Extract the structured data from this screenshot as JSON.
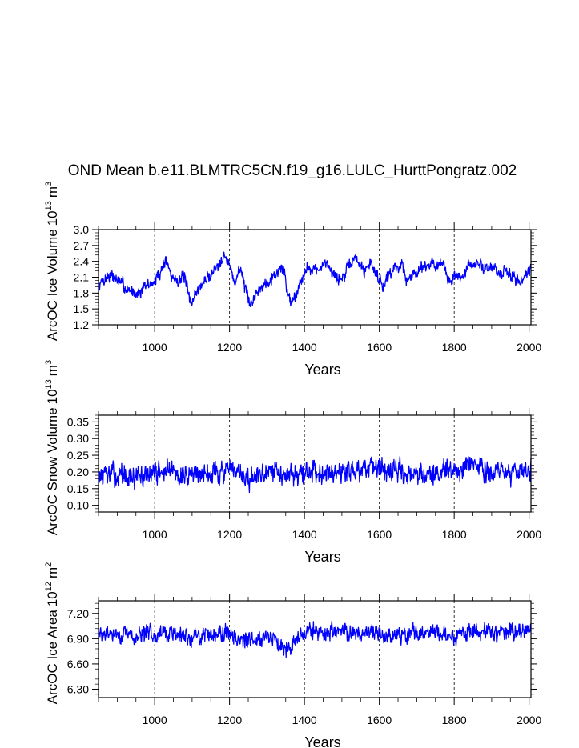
{
  "title": "OND Mean b.e11.BLMTRC5CN.f19_g16.LULC_HurttPongratz.002",
  "style": {
    "line_color": "#0000ff",
    "axis_color": "#000000",
    "gridline_color": "#000000"
  },
  "chart_data": [
    {
      "type": "line",
      "name": "ice-volume",
      "ylabel": "ArcOC Ice Volume",
      "ylabel_exponent_base": "10",
      "ylabel_exponent": "13",
      "ylabel_unit": "m",
      "ylabel_unit_exponent": "3",
      "xlabel": "Years",
      "xlim": [
        850,
        2005
      ],
      "ylim": [
        1.2,
        3.0
      ],
      "xticks": [
        1000,
        1200,
        1400,
        1600,
        1800,
        2000
      ],
      "xtick_labels": [
        "1000",
        "1200",
        "1400",
        "1600",
        "1800",
        "2000"
      ],
      "yticks": [
        1.2,
        1.5,
        1.8,
        2.1,
        2.4,
        2.7,
        3.0
      ],
      "ytick_labels": [
        "1.2",
        "1.5",
        "1.8",
        "2.1",
        "2.4",
        "2.7",
        "3.0"
      ],
      "vertical_gridlines": [
        1000,
        1200,
        1400,
        1600,
        1800
      ],
      "series": [
        {
          "name": "ice_volume",
          "start_year": 850,
          "end_year": 2005,
          "anchors": [
            [
              850,
              1.95
            ],
            [
              880,
              2.15
            ],
            [
              900,
              2.05
            ],
            [
              930,
              1.85
            ],
            [
              960,
              1.8
            ],
            [
              980,
              1.95
            ],
            [
              1000,
              2.0
            ],
            [
              1015,
              2.2
            ],
            [
              1030,
              2.45
            ],
            [
              1045,
              2.1
            ],
            [
              1060,
              2.05
            ],
            [
              1080,
              2.1
            ],
            [
              1095,
              1.6
            ],
            [
              1110,
              1.8
            ],
            [
              1130,
              2.0
            ],
            [
              1150,
              2.15
            ],
            [
              1170,
              2.35
            ],
            [
              1185,
              2.55
            ],
            [
              1200,
              2.3
            ],
            [
              1215,
              2.0
            ],
            [
              1230,
              2.3
            ],
            [
              1245,
              1.75
            ],
            [
              1255,
              1.55
            ],
            [
              1270,
              1.8
            ],
            [
              1290,
              1.95
            ],
            [
              1310,
              2.1
            ],
            [
              1330,
              2.2
            ],
            [
              1345,
              2.3
            ],
            [
              1355,
              1.75
            ],
            [
              1370,
              1.65
            ],
            [
              1385,
              1.95
            ],
            [
              1400,
              2.2
            ],
            [
              1420,
              2.3
            ],
            [
              1440,
              2.2
            ],
            [
              1460,
              2.4
            ],
            [
              1475,
              2.2
            ],
            [
              1490,
              2.05
            ],
            [
              1510,
              2.15
            ],
            [
              1525,
              2.4
            ],
            [
              1540,
              2.45
            ],
            [
              1560,
              2.2
            ],
            [
              1575,
              2.4
            ],
            [
              1590,
              2.2
            ],
            [
              1610,
              1.95
            ],
            [
              1625,
              2.15
            ],
            [
              1645,
              2.3
            ],
            [
              1660,
              2.35
            ],
            [
              1675,
              2.0
            ],
            [
              1690,
              2.15
            ],
            [
              1710,
              2.3
            ],
            [
              1730,
              2.35
            ],
            [
              1750,
              2.35
            ],
            [
              1770,
              2.3
            ],
            [
              1790,
              2.0
            ],
            [
              1805,
              2.15
            ],
            [
              1820,
              2.1
            ],
            [
              1840,
              2.3
            ],
            [
              1860,
              2.35
            ],
            [
              1880,
              2.3
            ],
            [
              1900,
              2.3
            ],
            [
              1920,
              2.15
            ],
            [
              1940,
              2.2
            ],
            [
              1960,
              2.1
            ],
            [
              1975,
              2.0
            ],
            [
              1990,
              2.15
            ],
            [
              2005,
              2.3
            ]
          ],
          "noise": 0.15,
          "seed": 7
        }
      ]
    },
    {
      "type": "line",
      "name": "snow-volume",
      "ylabel": "ArcOC Snow Volume",
      "ylabel_exponent_base": "10",
      "ylabel_exponent": "13",
      "ylabel_unit": "m",
      "ylabel_unit_exponent": "3",
      "xlabel": "Years",
      "xlim": [
        850,
        2005
      ],
      "ylim": [
        0.08,
        0.37
      ],
      "xticks": [
        1000,
        1200,
        1400,
        1600,
        1800,
        2000
      ],
      "xtick_labels": [
        "1000",
        "1200",
        "1400",
        "1600",
        "1800",
        "2000"
      ],
      "yticks": [
        0.1,
        0.15,
        0.2,
        0.25,
        0.3,
        0.35
      ],
      "ytick_labels": [
        "0.10",
        "0.15",
        "0.20",
        "0.25",
        "0.30",
        "0.35"
      ],
      "vertical_gridlines": [
        1000,
        1200,
        1400,
        1600,
        1800
      ],
      "series": [
        {
          "name": "snow_volume",
          "start_year": 850,
          "end_year": 2005,
          "anchors": [
            [
              850,
              0.19
            ],
            [
              900,
              0.19
            ],
            [
              950,
              0.18
            ],
            [
              1000,
              0.2
            ],
            [
              1050,
              0.2
            ],
            [
              1100,
              0.19
            ],
            [
              1150,
              0.2
            ],
            [
              1200,
              0.2
            ],
            [
              1250,
              0.18
            ],
            [
              1300,
              0.19
            ],
            [
              1350,
              0.2
            ],
            [
              1400,
              0.19
            ],
            [
              1450,
              0.21
            ],
            [
              1500,
              0.2
            ],
            [
              1550,
              0.21
            ],
            [
              1600,
              0.2
            ],
            [
              1650,
              0.2
            ],
            [
              1700,
              0.2
            ],
            [
              1750,
              0.19
            ],
            [
              1800,
              0.2
            ],
            [
              1850,
              0.22
            ],
            [
              1900,
              0.2
            ],
            [
              1950,
              0.2
            ],
            [
              2005,
              0.21
            ]
          ],
          "noise": 0.042,
          "seed": 13
        }
      ]
    },
    {
      "type": "line",
      "name": "ice-area",
      "ylabel": "ArcOC Ice Area",
      "ylabel_exponent_base": "10",
      "ylabel_exponent": "12",
      "ylabel_unit": "m",
      "ylabel_unit_exponent": "2",
      "xlabel": "Years",
      "xlim": [
        850,
        2005
      ],
      "ylim": [
        6.2,
        7.35
      ],
      "xticks": [
        1000,
        1200,
        1400,
        1600,
        1800,
        2000
      ],
      "xtick_labels": [
        "1000",
        "1200",
        "1400",
        "1600",
        "1800",
        "2000"
      ],
      "yticks": [
        6.3,
        6.6,
        6.9,
        7.2
      ],
      "ytick_labels": [
        "6.30",
        "6.60",
        "6.90",
        "7.20"
      ],
      "vertical_gridlines": [
        1000,
        1200,
        1400,
        1600,
        1800
      ],
      "series": [
        {
          "name": "ice_area",
          "start_year": 850,
          "end_year": 2005,
          "anchors": [
            [
              850,
              6.95
            ],
            [
              900,
              6.95
            ],
            [
              950,
              6.92
            ],
            [
              1000,
              6.98
            ],
            [
              1050,
              6.95
            ],
            [
              1100,
              6.9
            ],
            [
              1150,
              6.97
            ],
            [
              1200,
              6.97
            ],
            [
              1250,
              6.85
            ],
            [
              1300,
              6.95
            ],
            [
              1350,
              6.8
            ],
            [
              1400,
              6.98
            ],
            [
              1450,
              6.97
            ],
            [
              1500,
              6.98
            ],
            [
              1550,
              6.97
            ],
            [
              1600,
              6.95
            ],
            [
              1650,
              6.95
            ],
            [
              1700,
              6.97
            ],
            [
              1750,
              6.98
            ],
            [
              1800,
              6.93
            ],
            [
              1850,
              6.97
            ],
            [
              1900,
              6.98
            ],
            [
              1950,
              6.97
            ],
            [
              2005,
              7.0
            ]
          ],
          "noise": 0.13,
          "seed": 29
        }
      ]
    }
  ]
}
